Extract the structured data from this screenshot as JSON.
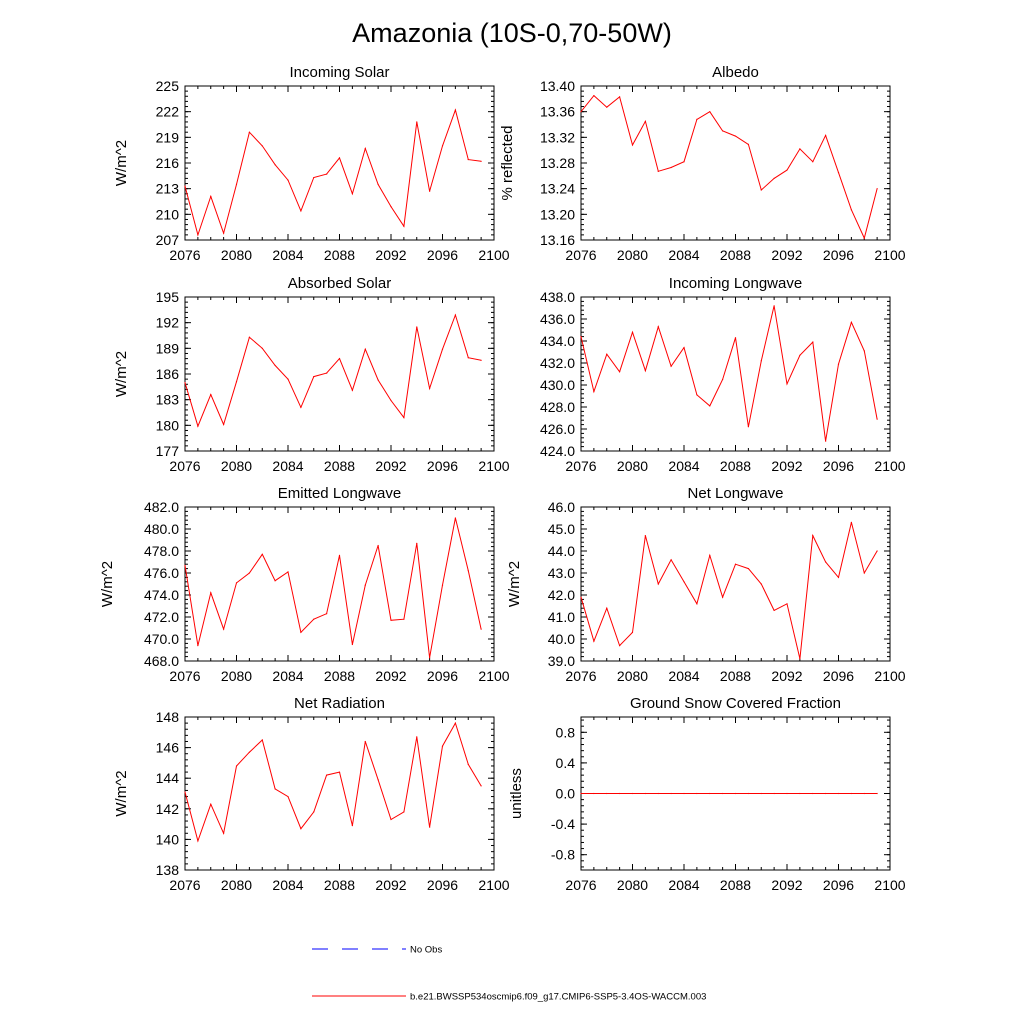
{
  "title": "Amazonia (10S-0,70-50W)",
  "colors": {
    "series": "#ff0000",
    "obs": "#0000ff",
    "axis": "#000000"
  },
  "legend": [
    {
      "label": "No Obs",
      "style": "dashed",
      "color": "#0000ff"
    },
    {
      "label": "b.e21.BWSSP534oscmip6.f09_g17.CMIP6-SSP5-3.4OS-WACCM.003",
      "style": "solid",
      "color": "#ff0000"
    }
  ],
  "chart_data": [
    {
      "type": "line",
      "title": "Incoming Solar",
      "ylabel": "W/m^2",
      "xlim": [
        2076,
        2100
      ],
      "ylim": [
        207,
        225
      ],
      "xticks": [
        "2076",
        "2080",
        "2084",
        "2088",
        "2092",
        "2096",
        "2100"
      ],
      "yticks": [
        "207",
        "210",
        "213",
        "216",
        "219",
        "222",
        "225"
      ],
      "x": [
        2076,
        2077,
        2078,
        2079,
        2080,
        2081,
        2082,
        2083,
        2084,
        2085,
        2086,
        2087,
        2088,
        2089,
        2090,
        2091,
        2092,
        2093,
        2094,
        2095,
        2096,
        2097,
        2098,
        2099
      ],
      "series": [
        {
          "values": [
            213.3,
            207.6,
            212.1,
            207.8,
            213.5,
            219.6,
            218.0,
            215.8,
            214.0,
            210.4,
            214.3,
            214.7,
            216.6,
            212.4,
            217.7,
            213.5,
            210.9,
            208.6,
            220.8,
            212.7,
            218.0,
            222.2,
            216.4,
            216.2
          ]
        }
      ]
    },
    {
      "type": "line",
      "title": "Albedo",
      "ylabel": "% reflected",
      "xlim": [
        2076,
        2100
      ],
      "ylim": [
        13.16,
        13.4
      ],
      "xticks": [
        "2076",
        "2080",
        "2084",
        "2088",
        "2092",
        "2096",
        "2100"
      ],
      "yticks": [
        "13.16",
        "13.20",
        "13.24",
        "13.28",
        "13.32",
        "13.36",
        "13.40"
      ],
      "x": [
        2076,
        2077,
        2078,
        2079,
        2080,
        2081,
        2082,
        2083,
        2084,
        2085,
        2086,
        2087,
        2088,
        2089,
        2090,
        2091,
        2092,
        2093,
        2094,
        2095,
        2096,
        2097,
        2098,
        2099
      ],
      "series": [
        {
          "values": [
            13.36,
            13.385,
            13.367,
            13.383,
            13.308,
            13.345,
            13.267,
            13.273,
            13.282,
            13.348,
            13.36,
            13.33,
            13.322,
            13.309,
            13.238,
            13.256,
            13.269,
            13.302,
            13.282,
            13.323,
            13.265,
            13.207,
            13.163,
            13.24
          ]
        }
      ]
    },
    {
      "type": "line",
      "title": "Absorbed Solar",
      "ylabel": "W/m^2",
      "xlim": [
        2076,
        2100
      ],
      "ylim": [
        177,
        195
      ],
      "xticks": [
        "2076",
        "2080",
        "2084",
        "2088",
        "2092",
        "2096",
        "2100"
      ],
      "yticks": [
        "177",
        "180",
        "183",
        "186",
        "189",
        "192",
        "195"
      ],
      "x": [
        2076,
        2077,
        2078,
        2079,
        2080,
        2081,
        2082,
        2083,
        2084,
        2085,
        2086,
        2087,
        2088,
        2089,
        2090,
        2091,
        2092,
        2093,
        2094,
        2095,
        2096,
        2097,
        2098,
        2099
      ],
      "series": [
        {
          "values": [
            185.0,
            179.9,
            183.6,
            180.1,
            185.1,
            190.3,
            189.0,
            187.0,
            185.4,
            182.1,
            185.7,
            186.1,
            187.8,
            184.1,
            188.9,
            185.3,
            182.9,
            180.9,
            191.5,
            184.3,
            188.9,
            192.9,
            187.9,
            187.6
          ]
        }
      ]
    },
    {
      "type": "line",
      "title": "Incoming Longwave",
      "ylabel": "",
      "xlim": [
        2076,
        2100
      ],
      "ylim": [
        424.0,
        438.0
      ],
      "xticks": [
        "2076",
        "2080",
        "2084",
        "2088",
        "2092",
        "2096",
        "2100"
      ],
      "yticks": [
        "424.0",
        "426.0",
        "428.0",
        "430.0",
        "432.0",
        "434.0",
        "436.0",
        "438.0"
      ],
      "x": [
        2076,
        2077,
        2078,
        2079,
        2080,
        2081,
        2082,
        2083,
        2084,
        2085,
        2086,
        2087,
        2088,
        2089,
        2090,
        2091,
        2092,
        2093,
        2094,
        2095,
        2096,
        2097,
        2098,
        2099
      ],
      "series": [
        {
          "values": [
            434.4,
            429.4,
            432.8,
            431.2,
            434.8,
            431.3,
            435.3,
            431.7,
            433.4,
            429.1,
            428.1,
            430.5,
            434.3,
            426.2,
            432.2,
            437.2,
            430.1,
            432.7,
            433.9,
            424.9,
            431.9,
            435.7,
            433.1,
            426.9
          ]
        }
      ]
    },
    {
      "type": "line",
      "title": "Emitted Longwave",
      "ylabel": "W/m^2",
      "xlim": [
        2076,
        2100
      ],
      "ylim": [
        468.0,
        482.0
      ],
      "xticks": [
        "2076",
        "2080",
        "2084",
        "2088",
        "2092",
        "2096",
        "2100"
      ],
      "yticks": [
        "468.0",
        "470.0",
        "472.0",
        "474.0",
        "476.0",
        "478.0",
        "480.0",
        "482.0"
      ],
      "x": [
        2076,
        2077,
        2078,
        2079,
        2080,
        2081,
        2082,
        2083,
        2084,
        2085,
        2086,
        2087,
        2088,
        2089,
        2090,
        2091,
        2092,
        2093,
        2094,
        2095,
        2096,
        2097,
        2098,
        2099
      ],
      "series": [
        {
          "values": [
            476.7,
            469.4,
            474.2,
            470.9,
            475.1,
            476.0,
            477.7,
            475.3,
            476.1,
            470.6,
            471.8,
            472.3,
            477.6,
            469.5,
            474.9,
            478.5,
            471.7,
            471.8,
            478.7,
            468.3,
            474.9,
            481.0,
            476.2,
            470.9
          ]
        }
      ]
    },
    {
      "type": "line",
      "title": "Net Longwave",
      "ylabel": "W/m^2",
      "xlim": [
        2076,
        2100
      ],
      "ylim": [
        39.0,
        46.0
      ],
      "xticks": [
        "2076",
        "2080",
        "2084",
        "2088",
        "2092",
        "2096",
        "2100"
      ],
      "yticks": [
        "39.0",
        "40.0",
        "41.0",
        "42.0",
        "43.0",
        "44.0",
        "45.0",
        "46.0"
      ],
      "x": [
        2076,
        2077,
        2078,
        2079,
        2080,
        2081,
        2082,
        2083,
        2084,
        2085,
        2086,
        2087,
        2088,
        2089,
        2090,
        2091,
        2092,
        2093,
        2094,
        2095,
        2096,
        2097,
        2098,
        2099
      ],
      "series": [
        {
          "values": [
            41.9,
            39.9,
            41.4,
            39.7,
            40.3,
            44.7,
            42.5,
            43.6,
            42.6,
            41.6,
            43.8,
            41.9,
            43.4,
            43.2,
            42.5,
            41.3,
            41.6,
            39.1,
            44.7,
            43.5,
            42.8,
            45.3,
            43.0,
            44.0
          ]
        }
      ]
    },
    {
      "type": "line",
      "title": "Net Radiation",
      "ylabel": "W/m^2",
      "xlim": [
        2076,
        2100
      ],
      "ylim": [
        138,
        148
      ],
      "xticks": [
        "2076",
        "2080",
        "2084",
        "2088",
        "2092",
        "2096",
        "2100"
      ],
      "yticks": [
        "138",
        "140",
        "142",
        "144",
        "146",
        "148"
      ],
      "x": [
        2076,
        2077,
        2078,
        2079,
        2080,
        2081,
        2082,
        2083,
        2084,
        2085,
        2086,
        2087,
        2088,
        2089,
        2090,
        2091,
        2092,
        2093,
        2094,
        2095,
        2096,
        2097,
        2098,
        2099
      ],
      "series": [
        {
          "values": [
            143.1,
            139.9,
            142.3,
            140.4,
            144.8,
            145.7,
            146.5,
            143.3,
            142.8,
            140.7,
            141.8,
            144.2,
            144.4,
            140.9,
            146.4,
            143.9,
            141.3,
            141.8,
            146.7,
            140.8,
            146.1,
            147.6,
            144.9,
            143.5
          ]
        }
      ]
    },
    {
      "type": "line",
      "title": "Ground Snow Covered Fraction",
      "ylabel": "unitless",
      "xlim": [
        2076,
        2100
      ],
      "ylim": [
        -1.0,
        1.0
      ],
      "xticks": [
        "2076",
        "2080",
        "2084",
        "2088",
        "2092",
        "2096",
        "2100"
      ],
      "yticks": [
        "-0.8",
        "-0.4",
        "0.0",
        "0.4",
        "0.8"
      ],
      "x": [
        2076,
        2077,
        2078,
        2079,
        2080,
        2081,
        2082,
        2083,
        2084,
        2085,
        2086,
        2087,
        2088,
        2089,
        2090,
        2091,
        2092,
        2093,
        2094,
        2095,
        2096,
        2097,
        2098,
        2099
      ],
      "series": [
        {
          "values": [
            0,
            0,
            0,
            0,
            0,
            0,
            0,
            0,
            0,
            0,
            0,
            0,
            0,
            0,
            0,
            0,
            0,
            0,
            0,
            0,
            0,
            0,
            0,
            0
          ]
        }
      ]
    }
  ]
}
